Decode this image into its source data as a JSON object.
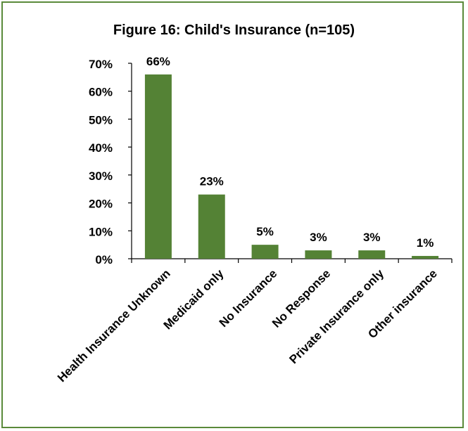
{
  "chart_data": {
    "type": "bar",
    "title": "Figure 16: Child's Insurance (n=105)",
    "categories": [
      "Health Insurance Unknown",
      "Medicaid only",
      "No Insurance",
      "No Response",
      "Private Insurance only",
      "Other insurance"
    ],
    "values": [
      66,
      23,
      5,
      3,
      3,
      1
    ],
    "value_labels": [
      "66%",
      "23%",
      "5%",
      "3%",
      "3%",
      "1%"
    ],
    "yticks": [
      "0%",
      "10%",
      "20%",
      "30%",
      "40%",
      "50%",
      "60%",
      "70%"
    ],
    "ylim": [
      0,
      70
    ],
    "xlabel": "",
    "ylabel": "",
    "grid": false,
    "bar_color": "#548235",
    "frame_color": "#5a8a3a"
  }
}
